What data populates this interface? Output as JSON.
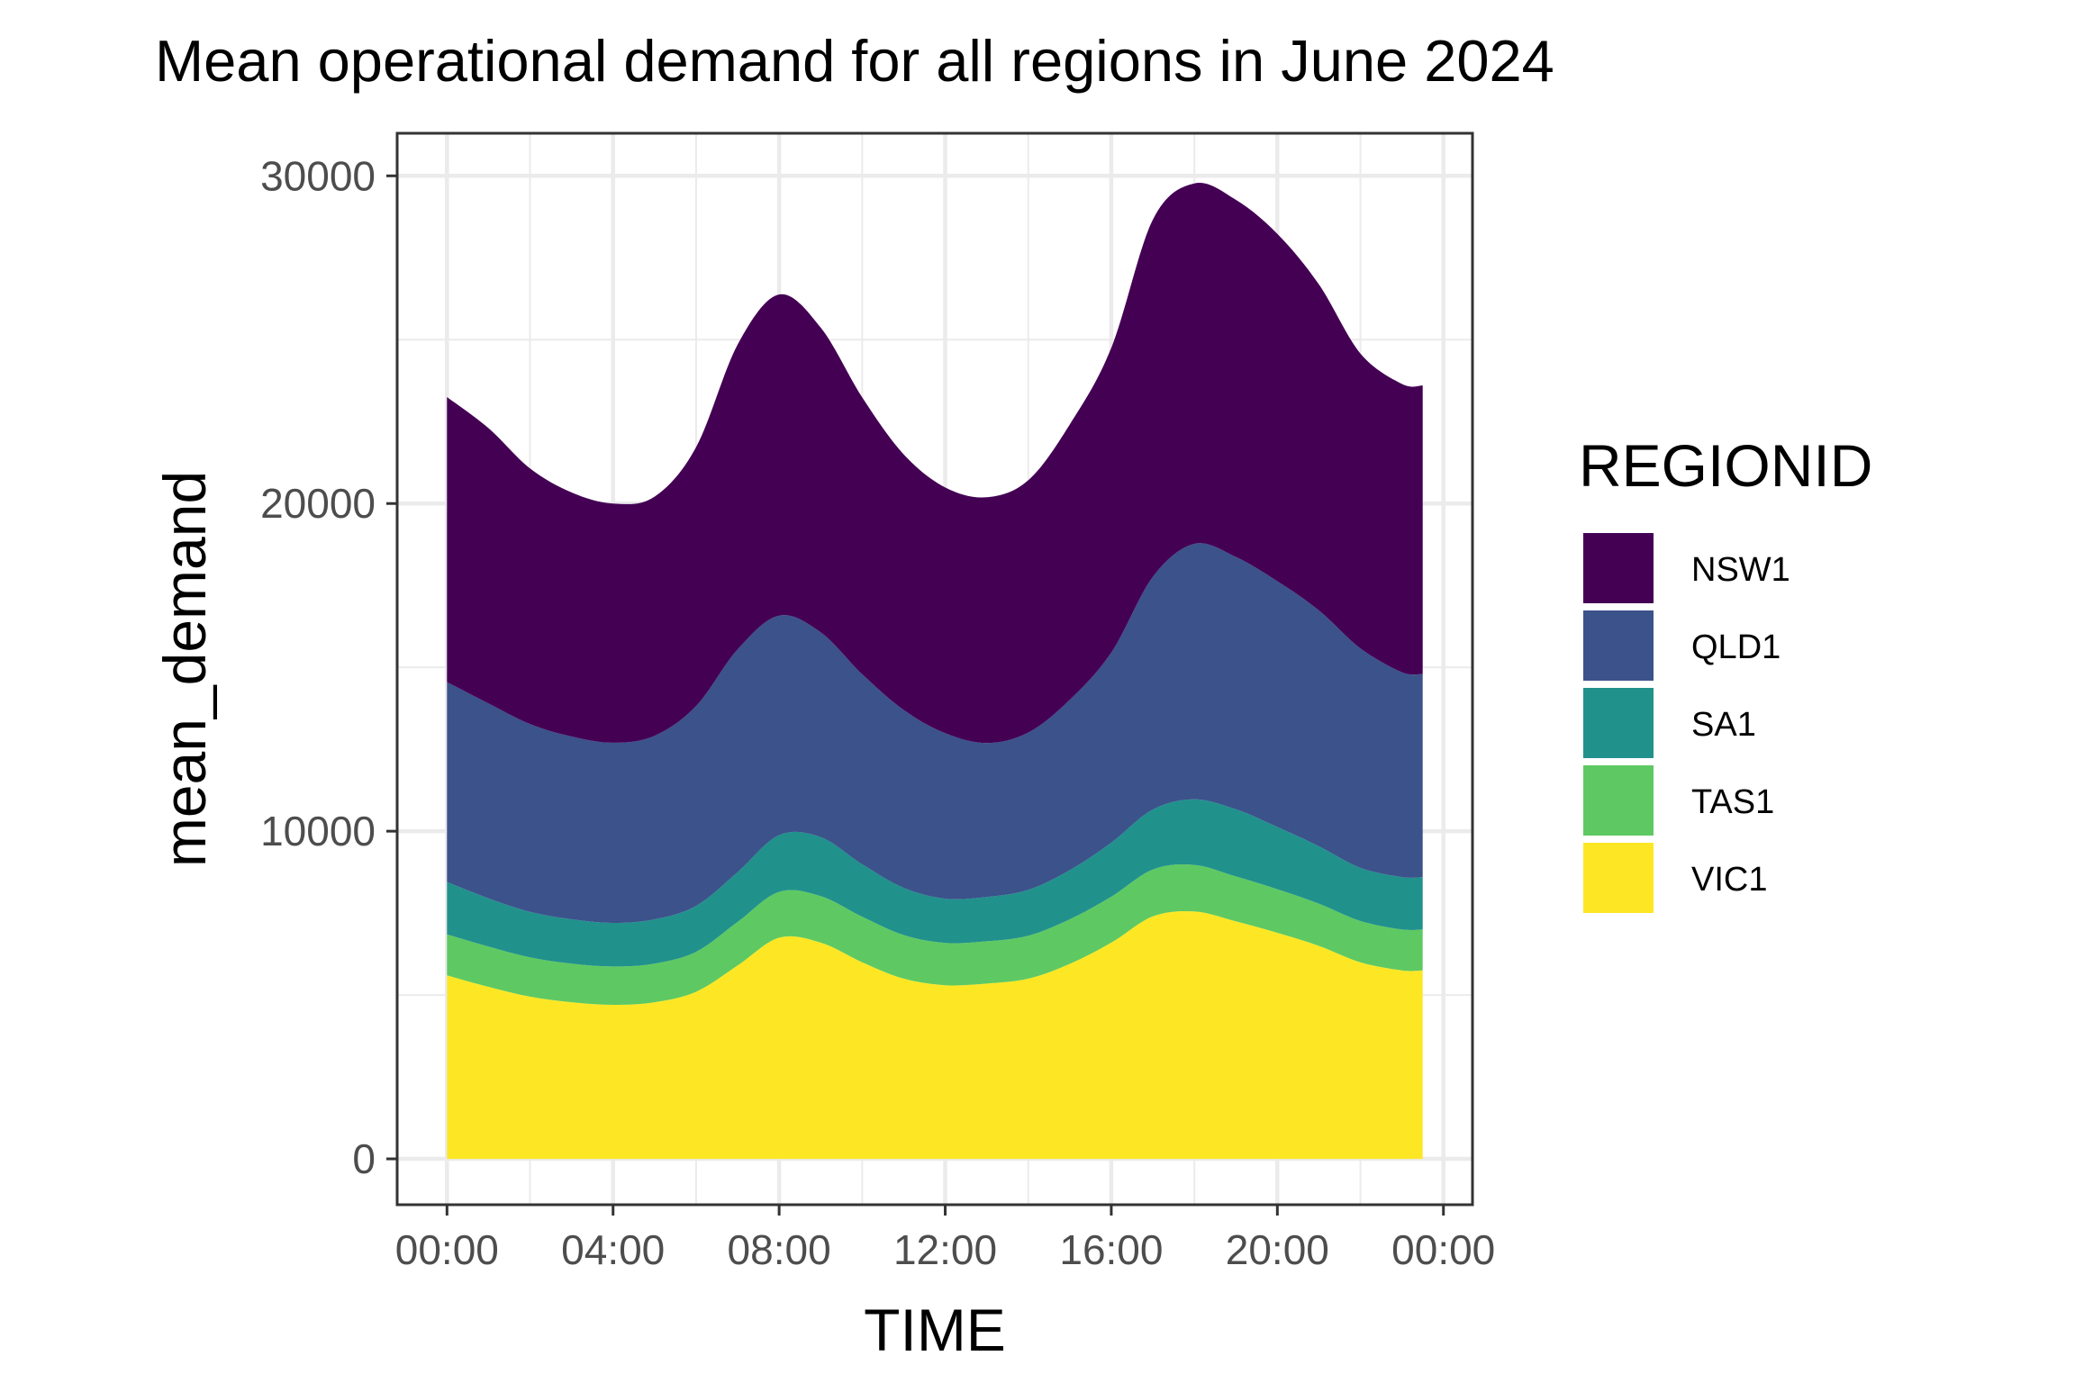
{
  "chart_data": {
    "type": "area",
    "stacked": true,
    "title": "Mean operational demand for all regions in June 2024",
    "xlabel": "TIME",
    "ylabel": "mean_demand",
    "x_tick_labels": [
      "00:00",
      "04:00",
      "08:00",
      "12:00",
      "16:00",
      "20:00",
      "00:00"
    ],
    "x_ticks_hours": [
      0,
      4,
      8,
      12,
      16,
      20,
      24
    ],
    "y_ticks": [
      0,
      10000,
      20000,
      30000
    ],
    "xlim_hours": [
      -1.2,
      24.7
    ],
    "ylim": [
      -1400,
      31300
    ],
    "grid": true,
    "legend_title": "REGIONID",
    "legend_position": "right",
    "x_hours": [
      0,
      1,
      2,
      3,
      4,
      5,
      6,
      7,
      8,
      9,
      10,
      11,
      12,
      13,
      14,
      15,
      16,
      17,
      18,
      19,
      20,
      21,
      22,
      23,
      23.5
    ],
    "series": [
      {
        "name": "VIC1",
        "color": "#FDE725",
        "values": [
          5600,
          5250,
          4950,
          4780,
          4700,
          4780,
          5100,
          5900,
          6750,
          6600,
          6000,
          5500,
          5300,
          5350,
          5500,
          5950,
          6600,
          7400,
          7550,
          7250,
          6900,
          6500,
          6000,
          5750,
          5750
        ]
      },
      {
        "name": "TAS1",
        "color": "#5EC962",
        "values": [
          1250,
          1230,
          1200,
          1180,
          1170,
          1180,
          1220,
          1330,
          1400,
          1420,
          1390,
          1330,
          1290,
          1290,
          1310,
          1360,
          1400,
          1430,
          1420,
          1370,
          1330,
          1290,
          1260,
          1250,
          1250
        ]
      },
      {
        "name": "SA1",
        "color": "#21918C",
        "values": [
          1600,
          1470,
          1390,
          1350,
          1330,
          1350,
          1400,
          1520,
          1730,
          1800,
          1600,
          1440,
          1350,
          1350,
          1400,
          1500,
          1650,
          1830,
          2000,
          2050,
          1900,
          1750,
          1620,
          1600,
          1600
        ]
      },
      {
        "name": "QLD1",
        "color": "#3B528B",
        "values": [
          6100,
          5950,
          5730,
          5580,
          5500,
          5600,
          6100,
          6800,
          6700,
          6250,
          5800,
          5430,
          5050,
          4700,
          4800,
          5200,
          5800,
          7100,
          7800,
          7700,
          7500,
          7200,
          6700,
          6250,
          6200
        ]
      },
      {
        "name": "NSW1",
        "color": "#440154",
        "values": [
          8700,
          8400,
          7800,
          7450,
          7300,
          7300,
          7900,
          9300,
          9800,
          9300,
          8450,
          7800,
          7500,
          7500,
          7700,
          8400,
          9300,
          10900,
          11000,
          10900,
          10600,
          9950,
          9000,
          8800,
          8800
        ]
      }
    ]
  }
}
